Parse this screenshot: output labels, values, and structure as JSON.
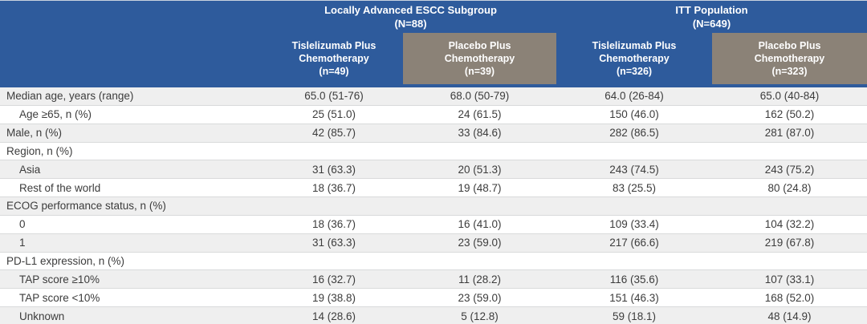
{
  "colors": {
    "header_blue": "#2e5b9c",
    "header_taupe": "#8b8277",
    "stripe_gray": "#efefef"
  },
  "table": {
    "groups": [
      {
        "title": "Locally Advanced ESCC Subgroup",
        "n": "(N=88)"
      },
      {
        "title": "ITT Population",
        "n": "(N=649)"
      }
    ],
    "columns": [
      {
        "title": "Tislelizumab Plus\nChemotherapy",
        "n": "(n=49)"
      },
      {
        "title": "Placebo Plus\nChemotherapy",
        "n": "(n=39)"
      },
      {
        "title": "Tislelizumab Plus\nChemotherapy",
        "n": "(n=326)"
      },
      {
        "title": "Placebo Plus\nChemotherapy",
        "n": "(n=323)"
      }
    ],
    "rows": [
      {
        "label": "Median age, years (range)",
        "indent": false,
        "values": [
          "65.0 (51-76)",
          "68.0 (50-79)",
          "64.0 (26-84)",
          "65.0 (40-84)"
        ]
      },
      {
        "label": "Age ≥65, n (%)",
        "indent": true,
        "values": [
          "25 (51.0)",
          "24 (61.5)",
          "150 (46.0)",
          "162 (50.2)"
        ]
      },
      {
        "label": "Male, n (%)",
        "indent": false,
        "values": [
          "42 (85.7)",
          "33 (84.6)",
          "282 (86.5)",
          "281 (87.0)"
        ]
      },
      {
        "label": "Region, n (%)",
        "indent": false,
        "values": [
          "",
          "",
          "",
          ""
        ]
      },
      {
        "label": "Asia",
        "indent": true,
        "values": [
          "31 (63.3)",
          "20 (51.3)",
          "243 (74.5)",
          "243 (75.2)"
        ]
      },
      {
        "label": "Rest of the world",
        "indent": true,
        "values": [
          "18 (36.7)",
          "19 (48.7)",
          "83 (25.5)",
          "80 (24.8)"
        ]
      },
      {
        "label": "ECOG performance status, n (%)",
        "indent": false,
        "values": [
          "",
          "",
          "",
          ""
        ]
      },
      {
        "label": "0",
        "indent": true,
        "values": [
          "18 (36.7)",
          "16 (41.0)",
          "109 (33.4)",
          "104 (32.2)"
        ]
      },
      {
        "label": "1",
        "indent": true,
        "values": [
          "31 (63.3)",
          "23 (59.0)",
          "217 (66.6)",
          "219 (67.8)"
        ]
      },
      {
        "label": "PD-L1 expression, n (%)",
        "indent": false,
        "values": [
          "",
          "",
          "",
          ""
        ]
      },
      {
        "label": "TAP score ≥10%",
        "indent": true,
        "values": [
          "16 (32.7)",
          "11 (28.2)",
          "116 (35.6)",
          "107 (33.1)"
        ]
      },
      {
        "label": "TAP score <10%",
        "indent": true,
        "values": [
          "19 (38.8)",
          "23 (59.0)",
          "151 (46.3)",
          "168 (52.0)"
        ]
      },
      {
        "label": "Unknown",
        "indent": true,
        "values": [
          "14 (28.6)",
          "5 (12.8)",
          "59 (18.1)",
          "48 (14.9)"
        ]
      }
    ]
  }
}
